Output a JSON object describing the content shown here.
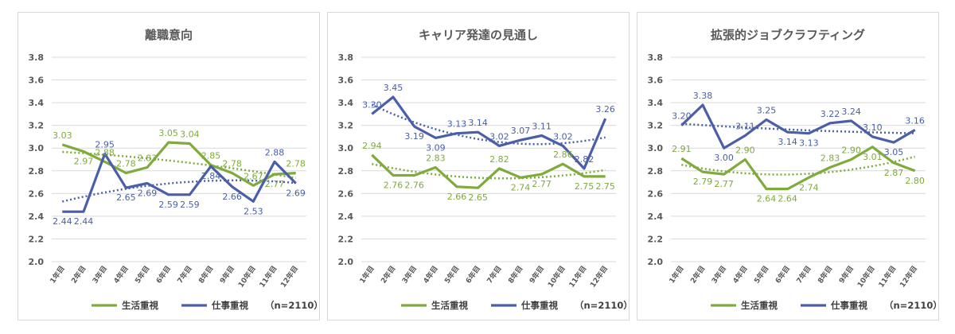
{
  "colors": {
    "lifestyle": "#7faa3c",
    "work": "#4a5fa8"
  },
  "legend": {
    "lifestyle": "生活重視",
    "work": "仕事重視",
    "note": "（n=2110）"
  },
  "chart_data": [
    {
      "type": "line",
      "title": "離職意向",
      "categories": [
        "1年目",
        "2年目",
        "3年目",
        "4年目",
        "5年目",
        "6年目",
        "7年目",
        "8年目",
        "9年目",
        "10年目",
        "11年目",
        "12年目"
      ],
      "ylim": [
        2.0,
        3.8
      ],
      "yticks": [
        "2.0",
        "2.2",
        "2.4",
        "2.6",
        "2.8",
        "3.0",
        "3.2",
        "3.4",
        "3.6",
        "3.8"
      ],
      "series": [
        {
          "name": "生活重視",
          "values": [
            3.03,
            2.97,
            2.88,
            2.78,
            2.83,
            3.05,
            3.04,
            2.85,
            2.78,
            2.67,
            2.77,
            2.78
          ],
          "labels": [
            "3.03",
            "2.97",
            "2.88",
            "2.78",
            "2.83",
            "3.05",
            "3.04",
            "2.85",
            "2.78",
            "2.67",
            "2.77",
            "2.78"
          ]
        },
        {
          "name": "仕事重視",
          "values": [
            2.44,
            2.44,
            2.95,
            2.65,
            2.69,
            2.59,
            2.59,
            2.84,
            2.66,
            2.53,
            2.88,
            2.69
          ],
          "labels": [
            "2.44",
            "2.44",
            "2.95",
            "2.65",
            "2.69",
            "2.59",
            "2.59",
            "2.84",
            "2.66",
            "2.53",
            "2.88",
            "2.69"
          ]
        }
      ]
    },
    {
      "type": "line",
      "title": "キャリア発達の見通し",
      "categories": [
        "1年目",
        "2年目",
        "3年目",
        "4年目",
        "5年目",
        "6年目",
        "7年目",
        "8年目",
        "9年目",
        "10年目",
        "11年目",
        "12年目"
      ],
      "ylim": [
        2.0,
        3.8
      ],
      "yticks": [
        "2.0",
        "2.2",
        "2.4",
        "2.6",
        "2.8",
        "3.0",
        "3.2",
        "3.4",
        "3.6",
        "3.8"
      ],
      "series": [
        {
          "name": "生活重視",
          "values": [
            2.94,
            2.76,
            2.76,
            2.83,
            2.66,
            2.65,
            2.82,
            2.74,
            2.77,
            2.86,
            2.75,
            2.75
          ],
          "labels": [
            "2.94",
            "2.76",
            "2.76",
            "2.83",
            "2.66",
            "2.65",
            "2.82",
            "2.74",
            "2.77",
            "2.86",
            "2.75",
            "2.75"
          ]
        },
        {
          "name": "仕事重視",
          "values": [
            3.3,
            3.45,
            3.19,
            3.09,
            3.13,
            3.14,
            3.02,
            3.07,
            3.11,
            3.02,
            2.82,
            3.26
          ],
          "labels": [
            "3.30",
            "3.45",
            "3.19",
            "3.09",
            "3.13",
            "3.14",
            "3.02",
            "3.07",
            "3.11",
            "3.02",
            "2.82",
            "3.26"
          ]
        }
      ]
    },
    {
      "type": "line",
      "title": "拡張的ジョブクラフティング",
      "categories": [
        "1年目",
        "2年目",
        "3年目",
        "4年目",
        "5年目",
        "6年目",
        "7年目",
        "8年目",
        "9年目",
        "10年目",
        "11年目",
        "12年目"
      ],
      "ylim": [
        2.0,
        3.8
      ],
      "yticks": [
        "2.0",
        "2.2",
        "2.4",
        "2.6",
        "2.8",
        "3.0",
        "3.2",
        "3.4",
        "3.6",
        "3.8"
      ],
      "series": [
        {
          "name": "生活重視",
          "values": [
            2.91,
            2.79,
            2.77,
            2.9,
            2.64,
            2.64,
            2.74,
            2.83,
            2.9,
            3.01,
            2.87,
            2.8
          ],
          "labels": [
            "2.91",
            "2.79",
            "2.77",
            "2.90",
            "2.64",
            "2.64",
            "2.74",
            "2.83",
            "2.90",
            "3.01",
            "2.87",
            "2.80"
          ]
        },
        {
          "name": "仕事重視",
          "values": [
            3.2,
            3.38,
            3.0,
            3.11,
            3.25,
            3.14,
            3.13,
            3.22,
            3.24,
            3.1,
            3.05,
            3.16
          ],
          "labels": [
            "3.20",
            "3.38",
            "3.00",
            "3.11",
            "3.25",
            "3.14",
            "3.13",
            "3.22",
            "3.24",
            "3.10",
            "3.05",
            "3.16"
          ]
        }
      ]
    }
  ]
}
